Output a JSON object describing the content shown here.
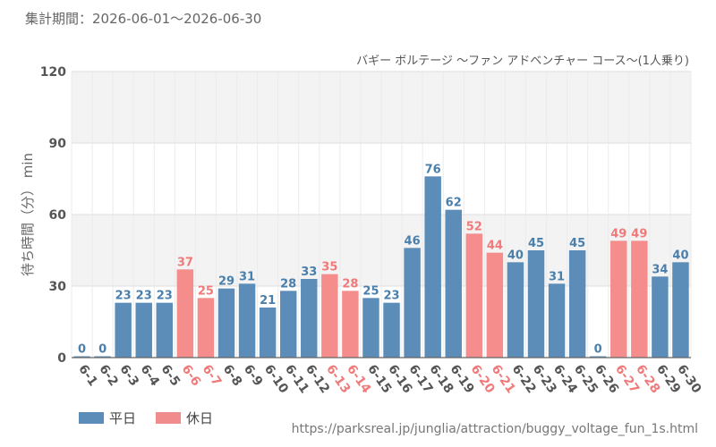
{
  "period_label": "集計期間：2026-06-01～2026-06-30",
  "source_url": "https://parksreal.jp/junglia/attraction/buggy_voltage_fun_1s.html",
  "legend": [
    {
      "label": "平日",
      "color": "#5b8db8"
    },
    {
      "label": "休日",
      "color": "#f08c8c"
    }
  ],
  "colors": {
    "weekday": "#5b8db8",
    "holiday": "#f58d8d",
    "weekday_label": "#4a7fab",
    "holiday_label": "#f07a7a",
    "band": "#f3f3f3",
    "grid": "#dddddd"
  },
  "chart_data": {
    "type": "bar",
    "title": "バギー ボルテージ ～ファン アドベンチャー コース～(1人乗り)",
    "ylabel": "待ち時間（分） min",
    "ylim": [
      0,
      120
    ],
    "yticks": [
      0,
      30,
      60,
      90,
      120
    ],
    "grid": true,
    "legend_position": "bottom-left",
    "categories": [
      "6-1",
      "6-2",
      "6-3",
      "6-4",
      "6-5",
      "6-6",
      "6-7",
      "6-8",
      "6-9",
      "6-10",
      "6-11",
      "6-12",
      "6-13",
      "6-14",
      "6-15",
      "6-16",
      "6-17",
      "6-18",
      "6-19",
      "6-20",
      "6-21",
      "6-22",
      "6-23",
      "6-24",
      "6-25",
      "6-26",
      "6-27",
      "6-28",
      "6-29",
      "6-30"
    ],
    "values": [
      0,
      0,
      23,
      23,
      23,
      37,
      25,
      29,
      31,
      21,
      28,
      33,
      35,
      28,
      25,
      23,
      46,
      76,
      62,
      52,
      44,
      40,
      45,
      31,
      45,
      0,
      49,
      49,
      34,
      40
    ],
    "holiday": [
      false,
      false,
      false,
      false,
      false,
      true,
      true,
      false,
      false,
      false,
      false,
      false,
      true,
      true,
      false,
      false,
      false,
      false,
      false,
      true,
      true,
      false,
      false,
      false,
      false,
      false,
      true,
      true,
      false,
      false
    ],
    "series": [
      {
        "name": "平日"
      },
      {
        "name": "休日"
      }
    ]
  }
}
